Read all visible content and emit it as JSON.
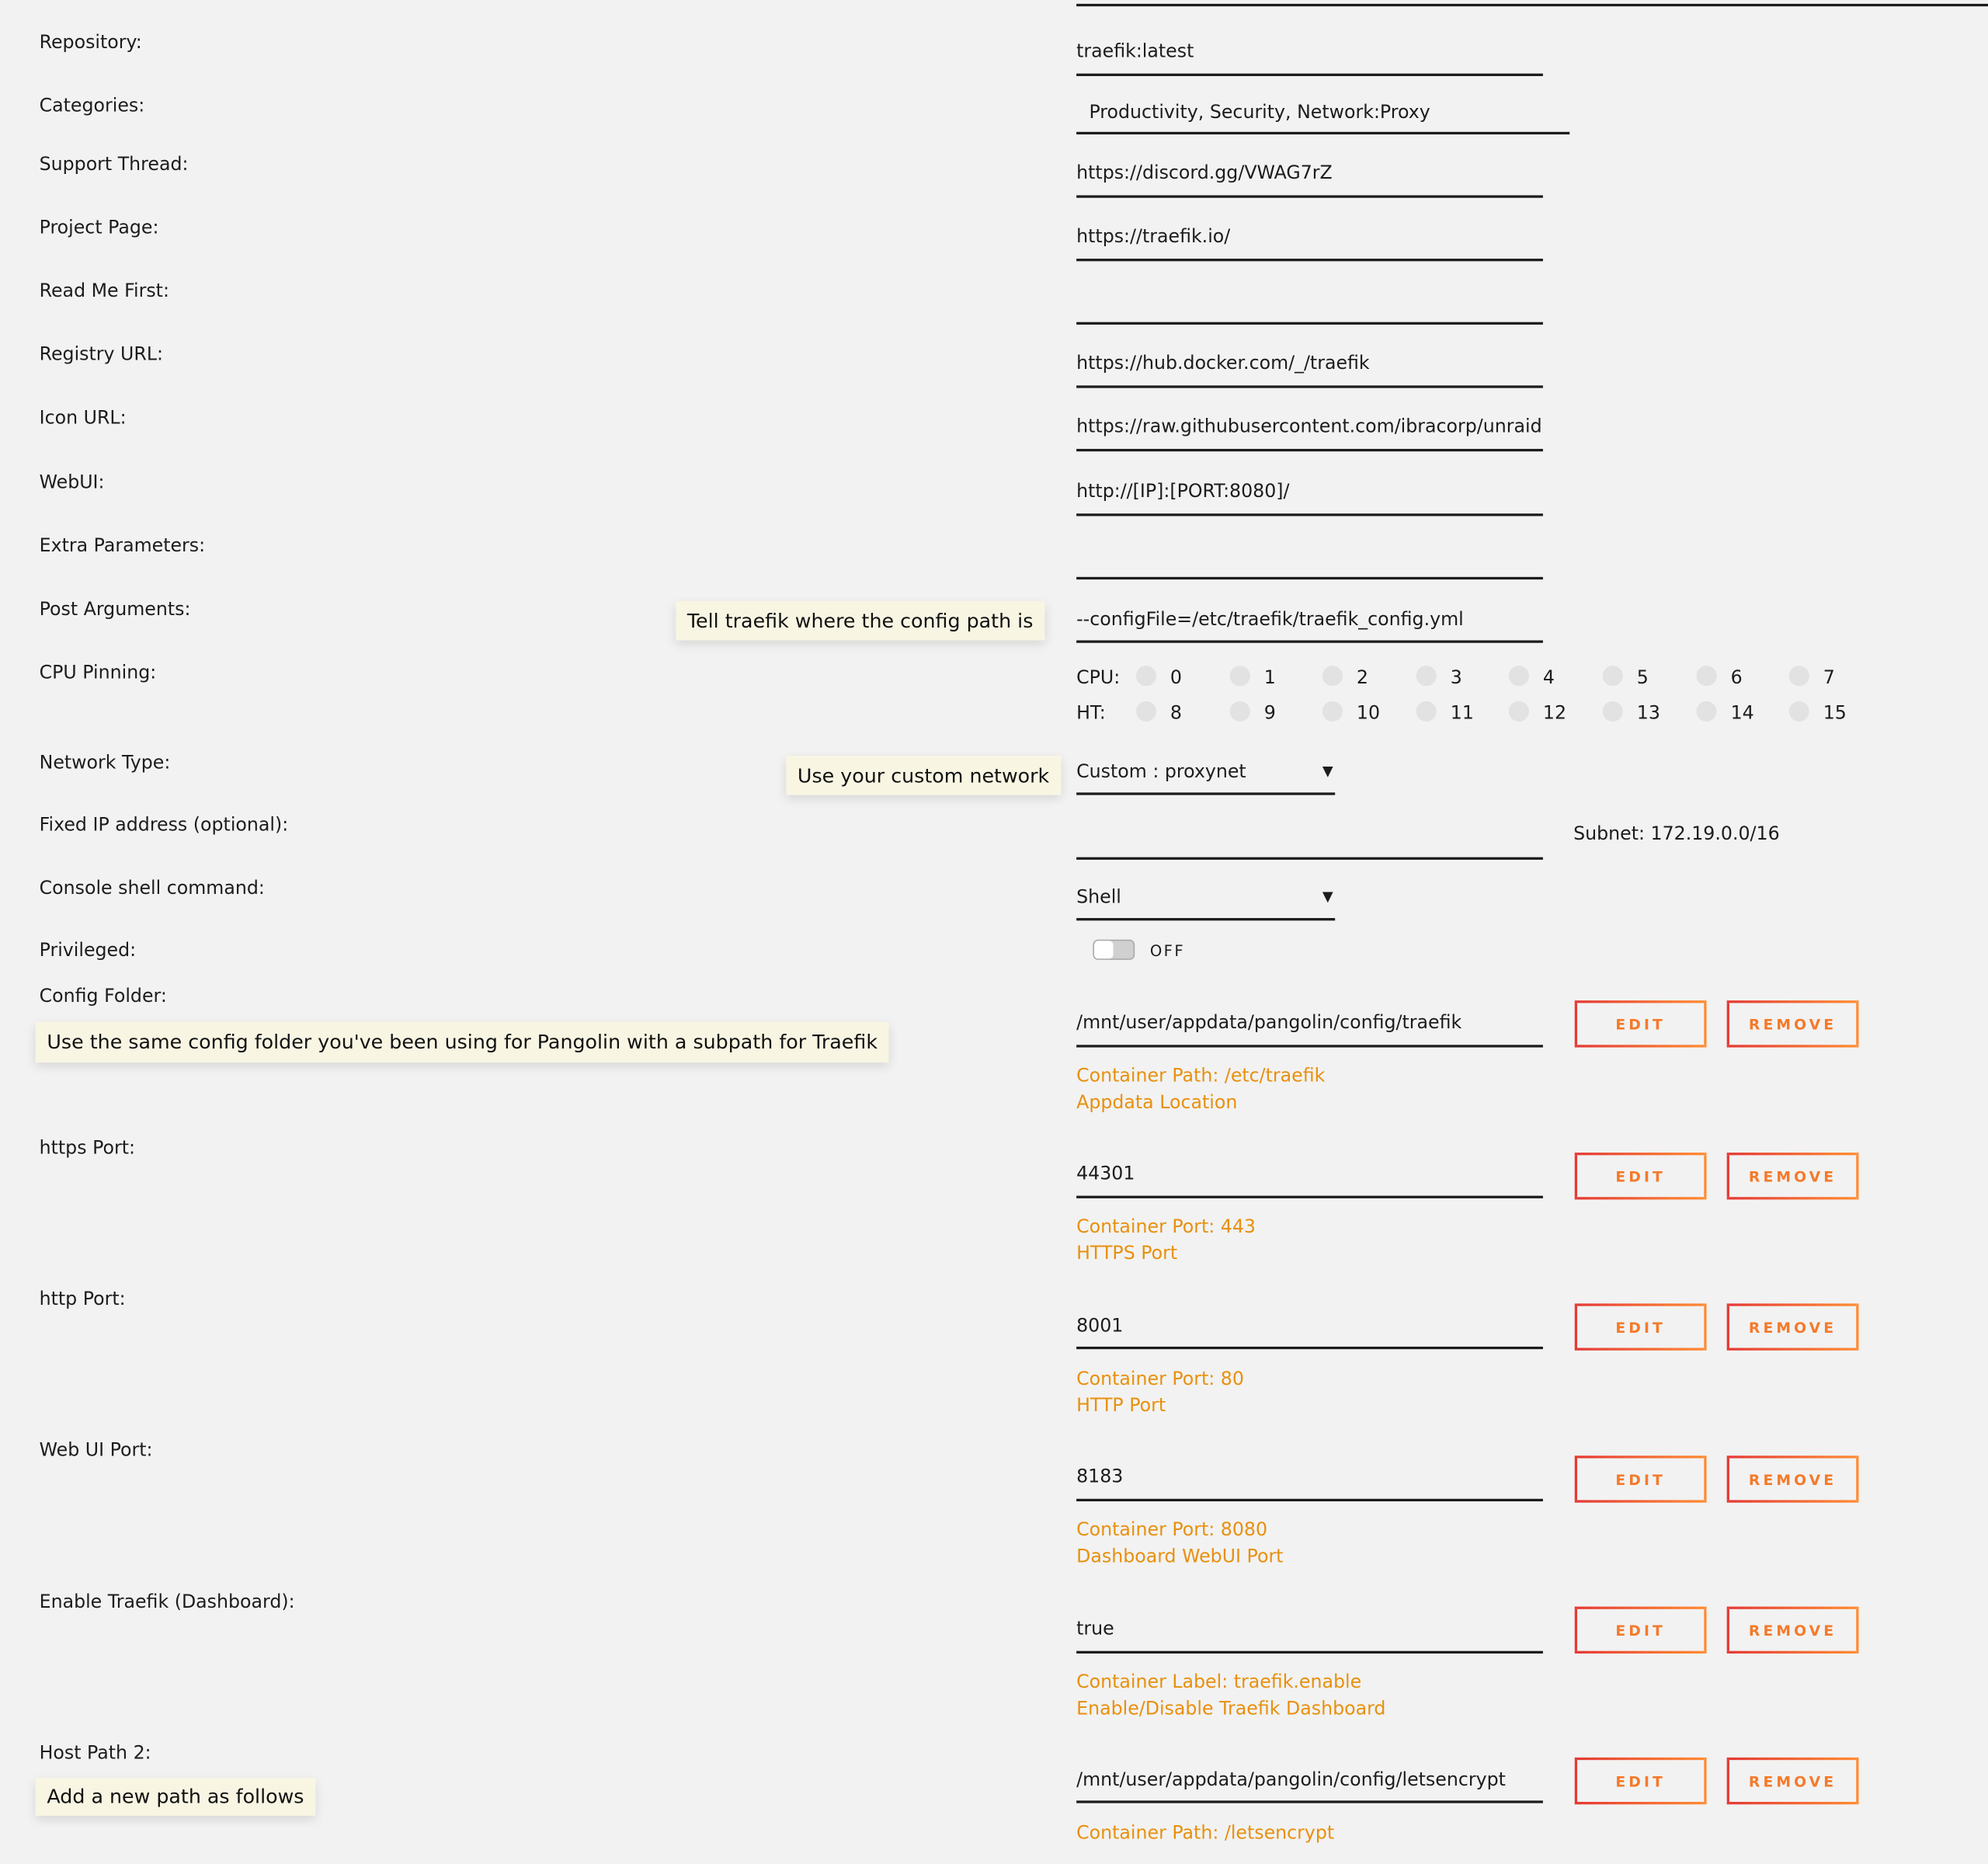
{
  "fields": [
    {
      "label": "Repository:",
      "value": "traefik:latest"
    },
    {
      "label": "Categories:",
      "value": "Productivity, Security, Network:Proxy"
    },
    {
      "label": "Support Thread:",
      "value": "https://discord.gg/VWAG7rZ"
    },
    {
      "label": "Project Page:",
      "value": "https://traefik.io/"
    },
    {
      "label": "Read Me First:",
      "value": ""
    },
    {
      "label": "Registry URL:",
      "value": "https://hub.docker.com/_/traefik"
    },
    {
      "label": "Icon URL:",
      "value": "https://raw.githubusercontent.com/ibracorp/unraid"
    },
    {
      "label": "WebUI:",
      "value": "http://[IP]:[PORT:8080]/"
    },
    {
      "label": "Extra Parameters:",
      "value": ""
    },
    {
      "label": "Post Arguments:",
      "value": "--configFile=/etc/traefik/traefik_config.yml"
    }
  ],
  "cpu_pinning": {
    "label": "CPU Pinning:",
    "cpu_label": "CPU:",
    "ht_label": "HT:",
    "cpu": [
      "0",
      "1",
      "2",
      "3",
      "4",
      "5",
      "6",
      "7"
    ],
    "ht": [
      "8",
      "9",
      "10",
      "11",
      "12",
      "13",
      "14",
      "15"
    ]
  },
  "network_type": {
    "label": "Network Type:",
    "value": "Custom : proxynet",
    "arrow": "▼"
  },
  "fixed_ip": {
    "label": "Fixed IP address (optional):",
    "value": "",
    "subnet": "Subnet: 172.19.0.0/16"
  },
  "console_shell": {
    "label": "Console shell command:",
    "value": "Shell",
    "arrow": "▼"
  },
  "privileged": {
    "label": "Privileged:",
    "state": "OFF",
    "on": false
  },
  "buttons": {
    "edit": "EDIT",
    "remove": "REMOVE"
  },
  "mappings": [
    {
      "label": "Config Folder:",
      "value": "/mnt/user/appdata/pangolin/config/traefik",
      "info1": "Container Path: /etc/traefik",
      "info2": "Appdata Location"
    },
    {
      "label": "https Port:",
      "value": "44301",
      "info1": "Container Port: 443",
      "info2": "HTTPS Port"
    },
    {
      "label": "http Port:",
      "value": "8001",
      "info1": "Container Port: 80",
      "info2": "HTTP Port"
    },
    {
      "label": "Web UI Port:",
      "value": "8183",
      "info1": "Container Port: 8080",
      "info2": "Dashboard WebUI Port"
    },
    {
      "label": "Enable Traefik (Dashboard):",
      "value": "true",
      "info1": "Container Label: traefik.enable",
      "info2": "Enable/Disable Traefik Dashboard"
    },
    {
      "label": "Host Path 2:",
      "value": "/mnt/user/appdata/pangolin/config/letsencrypt",
      "info1": "Container Path: /letsencrypt",
      "info2": ""
    }
  ],
  "annotations": {
    "post_args": "Tell traefik where the config path is",
    "network": "Use your custom network",
    "config_folder": "Use the same config folder you've been using for Pangolin with a subpath for Traefik",
    "host_path": "Add a new path as follows"
  },
  "colors": {
    "accent_red": "#e53935",
    "accent_orange": "#ff8c33",
    "info_text": "#e8900e",
    "background": "#f2f2f2"
  }
}
